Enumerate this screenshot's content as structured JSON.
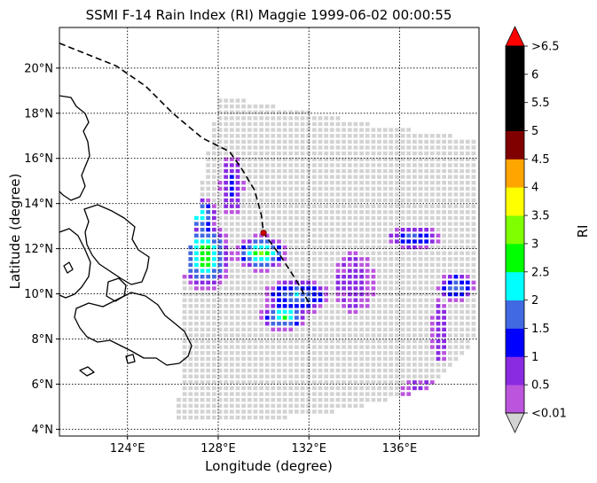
{
  "title": "SSMI F-14 Rain Index (RI) Maggie 1999-06-02 00:00:55",
  "xlabel": "Longitude (degree)",
  "ylabel": "Latitude (degree)",
  "colorbar": {
    "label": "RI",
    "tick_labels": [
      "<0.01",
      "0.5",
      "1",
      "1.5",
      "2",
      "2.5",
      "3",
      "3.5",
      "4",
      "4.5",
      "5",
      "5.5",
      "6",
      ">6.5"
    ],
    "colors": [
      "#bb55dd",
      "#8a2be2",
      "#0000ff",
      "#4169e1",
      "#00ffff",
      "#00ff00",
      "#7fff00",
      "#ffff00",
      "#ffa500",
      "#800000",
      "#000000",
      "#000000",
      "#000000"
    ],
    "under_color": "#d3d3d3",
    "over_color": "#ff0000"
  },
  "chart_data": {
    "type": "heatmap",
    "title": "SSMI F-14 Rain Index (RI) Maggie 1999-06-02 00:00:55",
    "xlabel": "Longitude (degree)",
    "ylabel": "Latitude (degree)",
    "xlim": [
      121.0,
      139.5
    ],
    "ylim": [
      3.7,
      21.8
    ],
    "x_ticks": [
      {
        "value": 124,
        "label": "124°E"
      },
      {
        "value": 128,
        "label": "128°E"
      },
      {
        "value": 132,
        "label": "132°E"
      },
      {
        "value": 136,
        "label": "136°E"
      }
    ],
    "y_ticks": [
      {
        "value": 4,
        "label": "4°N"
      },
      {
        "value": 6,
        "label": "6°N"
      },
      {
        "value": 8,
        "label": "8°N"
      },
      {
        "value": 10,
        "label": "10°N"
      },
      {
        "value": 12,
        "label": "12°N"
      },
      {
        "value": 14,
        "label": "14°N"
      },
      {
        "value": 16,
        "label": "16°N"
      },
      {
        "value": 18,
        "label": "18°N"
      },
      {
        "value": 20,
        "label": "20°N"
      }
    ],
    "grid": true,
    "colorbar_label": "RI",
    "track": [
      {
        "lon": 121.0,
        "lat": 21.1
      },
      {
        "lon": 122.0,
        "lat": 20.7
      },
      {
        "lon": 123.5,
        "lat": 20.1
      },
      {
        "lon": 124.8,
        "lat": 19.2
      },
      {
        "lon": 126.0,
        "lat": 18.0
      },
      {
        "lon": 127.3,
        "lat": 16.9
      },
      {
        "lon": 128.5,
        "lat": 16.3
      },
      {
        "lon": 129.0,
        "lat": 15.6
      },
      {
        "lon": 129.6,
        "lat": 14.6
      },
      {
        "lon": 129.9,
        "lat": 13.5
      },
      {
        "lon": 130.0,
        "lat": 12.7
      },
      {
        "lon": 130.8,
        "lat": 11.6
      },
      {
        "lon": 131.5,
        "lat": 10.5
      },
      {
        "lon": 132.0,
        "lat": 9.6
      }
    ],
    "storm_position": {
      "lon": 130.0,
      "lat": 12.7
    },
    "rain_regions": [
      {
        "lon": 127.4,
        "lat": 11.7,
        "rx": 0.9,
        "ry": 1.2,
        "ri": 3.2
      },
      {
        "lon": 129.9,
        "lat": 11.8,
        "rx": 0.9,
        "ry": 0.6,
        "ri": 3.1
      },
      {
        "lon": 130.9,
        "lat": 9.0,
        "rx": 0.8,
        "ry": 0.5,
        "ri": 2.9
      },
      {
        "lon": 127.2,
        "lat": 13.5,
        "rx": 0.6,
        "ry": 0.6,
        "ri": 2.6
      },
      {
        "lon": 131.5,
        "lat": 9.9,
        "rx": 1.1,
        "ry": 0.6,
        "ri": 2.2
      },
      {
        "lon": 128.6,
        "lat": 14.8,
        "rx": 0.4,
        "ry": 1.0,
        "ri": 1.4
      },
      {
        "lon": 136.6,
        "lat": 12.5,
        "rx": 0.9,
        "ry": 0.4,
        "ri": 1.8
      },
      {
        "lon": 138.5,
        "lat": 10.3,
        "rx": 0.6,
        "ry": 0.5,
        "ri": 2.1
      },
      {
        "lon": 134.0,
        "lat": 10.5,
        "rx": 0.7,
        "ry": 1.0,
        "ri": 0.9
      },
      {
        "lon": 137.8,
        "lat": 8.3,
        "rx": 0.3,
        "ry": 1.1,
        "ri": 1.1
      },
      {
        "lon": 136.9,
        "lat": 5.7,
        "rx": 0.6,
        "ry": 0.4,
        "ri": 0.7
      }
    ]
  }
}
